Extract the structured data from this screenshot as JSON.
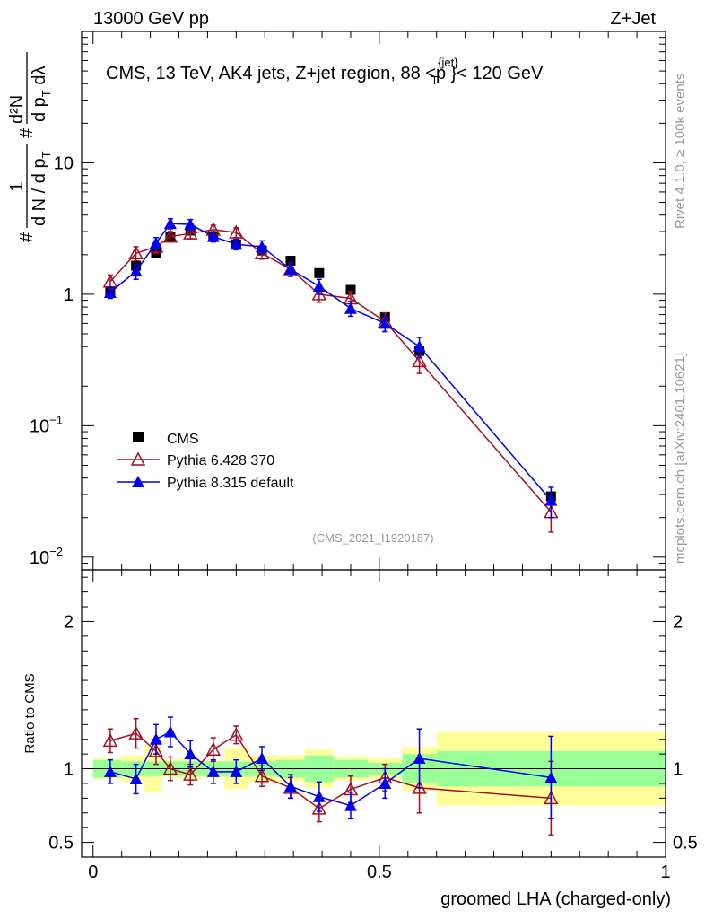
{
  "header": {
    "left": "13000 GeV pp",
    "right": "Z+Jet"
  },
  "side_labels": {
    "rivet": "Rivet 4.1.0, ≥ 100k events",
    "mcplots": "mcplots.cern.ch [arXiv:2401.10621]"
  },
  "colors": {
    "cms": "#000000",
    "pythia6": "#a50f24",
    "pythia8": "#0000ee",
    "band_inner": "#99ff99",
    "band_outer": "#ffff99"
  },
  "chart_data": [
    {
      "type": "scatter",
      "title": "CMS, 13 TeV, AK4 jets, Z+jet region, 88 <p",
      "title_sup": "{jet}",
      "title_sub": "T",
      "title_end": "}< 120 GeV",
      "watermark": "(CMS_2021_I1920187)",
      "ylabel": {
        "part1": "#",
        "frac_num": "1",
        "frac_den_a": "d N / d p",
        "frac_den_sub": "T",
        "part2": "#",
        "part3_num": "d²N",
        "part3_den_a": "d p",
        "part3_den_sub": "T",
        "part3_den_b": " dλ"
      },
      "yscale": "log",
      "ylim": [
        0.008,
        100
      ],
      "y_ticks": [
        {
          "value": 10,
          "label": "10"
        },
        {
          "value": 1,
          "label": "1"
        },
        {
          "value": 0.1,
          "label": "10",
          "sup": "−1"
        },
        {
          "value": 0.01,
          "label": "10",
          "sup": "−2"
        }
      ],
      "xlim": [
        -0.02,
        1.0
      ],
      "legend": [
        {
          "name": "CMS",
          "marker": "square",
          "key": "cms"
        },
        {
          "name": "Pythia 6.428 370",
          "marker": "triangle-open",
          "key": "pythia6"
        },
        {
          "name": "Pythia 8.315 default",
          "marker": "triangle",
          "key": "pythia8"
        }
      ],
      "series": [
        {
          "name": "CMS",
          "key": "cms",
          "x": [
            0.03,
            0.075,
            0.11,
            0.135,
            0.17,
            0.21,
            0.25,
            0.295,
            0.345,
            0.395,
            0.45,
            0.51,
            0.57,
            0.8
          ],
          "y": [
            1.05,
            1.65,
            2.05,
            2.75,
            3.05,
            2.75,
            2.4,
            2.15,
            1.8,
            1.45,
            1.08,
            0.67,
            0.37,
            0.029
          ],
          "err": [
            0,
            0,
            0,
            0,
            0,
            0,
            0,
            0,
            0,
            0,
            0,
            0,
            0,
            0
          ]
        },
        {
          "name": "Pythia 6.428 370",
          "key": "pythia6",
          "x": [
            0.03,
            0.075,
            0.11,
            0.135,
            0.17,
            0.21,
            0.25,
            0.295,
            0.345,
            0.395,
            0.45,
            0.51,
            0.57,
            0.8
          ],
          "y": [
            1.25,
            2.05,
            2.3,
            2.75,
            2.9,
            3.1,
            2.95,
            2.05,
            1.55,
            1.0,
            0.93,
            0.62,
            0.31,
            0.022
          ],
          "err": [
            0.15,
            0.25,
            0.25,
            0.25,
            0.25,
            0.25,
            0.25,
            0.2,
            0.18,
            0.13,
            0.12,
            0.1,
            0.06,
            0.0065
          ]
        },
        {
          "name": "Pythia 8.315 default",
          "key": "pythia8",
          "x": [
            0.03,
            0.075,
            0.11,
            0.135,
            0.17,
            0.21,
            0.25,
            0.295,
            0.345,
            0.395,
            0.45,
            0.51,
            0.57,
            0.8
          ],
          "y": [
            1.03,
            1.5,
            2.45,
            3.45,
            3.4,
            2.75,
            2.4,
            2.3,
            1.55,
            1.15,
            0.78,
            0.6,
            0.4,
            0.027
          ],
          "err": [
            0.1,
            0.2,
            0.25,
            0.3,
            0.3,
            0.25,
            0.22,
            0.25,
            0.18,
            0.15,
            0.1,
            0.08,
            0.07,
            0.007
          ]
        }
      ]
    },
    {
      "type": "scatter",
      "ylabel": "Ratio to CMS",
      "xlabel": "groomed LHA (charged-only)",
      "yscale": "linear",
      "ylim": [
        0.4,
        2.35
      ],
      "xlim": [
        -0.02,
        1.0
      ],
      "x_ticks": [
        {
          "value": 0,
          "label": "0"
        },
        {
          "value": 0.5,
          "label": "0.5"
        },
        {
          "value": 1,
          "label": "1"
        }
      ],
      "y_ticks": [
        {
          "value": 0.5,
          "label": "0.5"
        },
        {
          "value": 1,
          "label": "1"
        },
        {
          "value": 2,
          "label": "2"
        }
      ],
      "reference_line": 1,
      "uncertainty_bands": {
        "edges": [
          0.0,
          0.05,
          0.09,
          0.12,
          0.15,
          0.19,
          0.23,
          0.27,
          0.32,
          0.37,
          0.42,
          0.48,
          0.54,
          0.6,
          1.0
        ],
        "inner": [
          0.06,
          0.05,
          0.05,
          0.05,
          0.05,
          0.05,
          0.05,
          0.05,
          0.06,
          0.09,
          0.06,
          0.04,
          0.1,
          0.12
        ],
        "outer": [
          0.07,
          0.09,
          0.16,
          0.06,
          0.07,
          0.06,
          0.14,
          0.09,
          0.09,
          0.13,
          0.08,
          0.07,
          0.15,
          0.25
        ]
      },
      "series": [
        {
          "name": "Pythia 6.428 370",
          "key": "pythia6",
          "x": [
            0.03,
            0.075,
            0.11,
            0.135,
            0.17,
            0.21,
            0.25,
            0.295,
            0.345,
            0.395,
            0.45,
            0.51,
            0.57,
            0.8
          ],
          "y": [
            1.19,
            1.24,
            1.12,
            1.0,
            0.96,
            1.13,
            1.23,
            0.95,
            0.87,
            0.73,
            0.86,
            0.94,
            0.87,
            0.8
          ],
          "err": [
            0.08,
            0.1,
            0.09,
            0.08,
            0.07,
            0.08,
            0.06,
            0.07,
            0.07,
            0.09,
            0.09,
            0.09,
            0.17,
            0.25
          ]
        },
        {
          "name": "Pythia 8.315 default",
          "key": "pythia8",
          "x": [
            0.03,
            0.075,
            0.11,
            0.135,
            0.17,
            0.21,
            0.25,
            0.295,
            0.345,
            0.395,
            0.45,
            0.51,
            0.57,
            0.8
          ],
          "y": [
            0.98,
            0.93,
            1.2,
            1.25,
            1.1,
            0.98,
            0.98,
            1.07,
            0.88,
            0.81,
            0.75,
            0.9,
            1.07,
            0.94
          ],
          "err": [
            0.08,
            0.1,
            0.1,
            0.1,
            0.09,
            0.08,
            0.08,
            0.08,
            0.08,
            0.1,
            0.09,
            0.1,
            0.2,
            0.28
          ]
        }
      ]
    }
  ]
}
